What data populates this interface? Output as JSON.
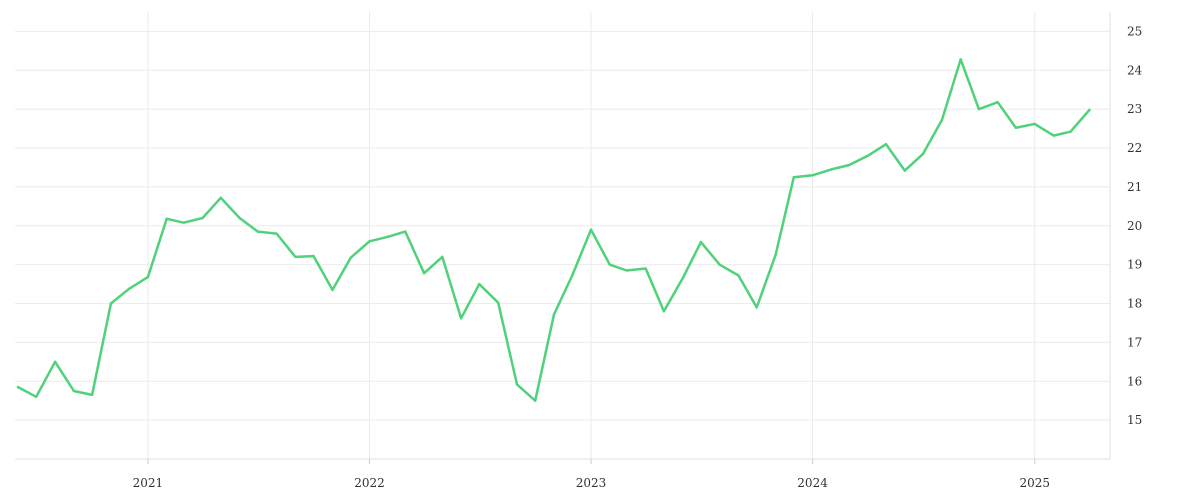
{
  "chart_data": {
    "type": "line",
    "title": "",
    "xlabel": "",
    "ylabel": "",
    "grid": true,
    "y_axis_side": "right",
    "ylim": [
      14,
      25.5
    ],
    "xlim": [
      "2020-05-27",
      "2025-05-05"
    ],
    "x_ticks": [
      {
        "date": "2021-01-01",
        "label": "2021"
      },
      {
        "date": "2022-01-01",
        "label": "2022"
      },
      {
        "date": "2023-01-01",
        "label": "2023"
      },
      {
        "date": "2024-01-01",
        "label": "2024"
      },
      {
        "date": "2025-01-01",
        "label": "2025"
      }
    ],
    "y_ticks": [
      15,
      16,
      17,
      18,
      19,
      20,
      21,
      22,
      23,
      24,
      25
    ],
    "series": [
      {
        "color": "#4fd27a",
        "points": [
          [
            "2020-06-01",
            15.85
          ],
          [
            "2020-07-01",
            15.6
          ],
          [
            "2020-08-01",
            16.5
          ],
          [
            "2020-09-01",
            15.75
          ],
          [
            "2020-10-01",
            15.65
          ],
          [
            "2020-11-01",
            18.0
          ],
          [
            "2020-12-01",
            18.38
          ],
          [
            "2021-01-01",
            18.68
          ],
          [
            "2021-02-01",
            20.18
          ],
          [
            "2021-03-01",
            20.08
          ],
          [
            "2021-04-01",
            20.2
          ],
          [
            "2021-05-01",
            20.72
          ],
          [
            "2021-06-01",
            20.2
          ],
          [
            "2021-07-01",
            19.85
          ],
          [
            "2021-08-01",
            19.8
          ],
          [
            "2021-09-01",
            19.2
          ],
          [
            "2021-10-01",
            19.22
          ],
          [
            "2021-11-01",
            18.35
          ],
          [
            "2021-12-01",
            19.18
          ],
          [
            "2022-01-01",
            19.6
          ],
          [
            "2022-02-01",
            19.72
          ],
          [
            "2022-03-01",
            19.85
          ],
          [
            "2022-04-01",
            18.78
          ],
          [
            "2022-05-01",
            19.2
          ],
          [
            "2022-06-01",
            17.62
          ],
          [
            "2022-07-01",
            18.5
          ],
          [
            "2022-08-01",
            18.02
          ],
          [
            "2022-09-01",
            15.92
          ],
          [
            "2022-10-01",
            15.5
          ],
          [
            "2022-11-01",
            17.72
          ],
          [
            "2022-12-01",
            18.72
          ],
          [
            "2023-01-01",
            19.9
          ],
          [
            "2023-02-01",
            19.0
          ],
          [
            "2023-03-01",
            18.85
          ],
          [
            "2023-04-01",
            18.9
          ],
          [
            "2023-05-01",
            17.8
          ],
          [
            "2023-06-01",
            18.65
          ],
          [
            "2023-07-01",
            19.58
          ],
          [
            "2023-08-01",
            19.0
          ],
          [
            "2023-09-01",
            18.72
          ],
          [
            "2023-10-01",
            17.9
          ],
          [
            "2023-11-01",
            19.25
          ],
          [
            "2023-12-01",
            21.25
          ],
          [
            "2024-01-01",
            21.3
          ],
          [
            "2024-02-01",
            21.45
          ],
          [
            "2024-03-01",
            21.56
          ],
          [
            "2024-04-01",
            21.8
          ],
          [
            "2024-05-01",
            22.1
          ],
          [
            "2024-06-01",
            21.42
          ],
          [
            "2024-07-01",
            21.85
          ],
          [
            "2024-08-01",
            22.72
          ],
          [
            "2024-09-01",
            24.28
          ],
          [
            "2024-10-01",
            23.0
          ],
          [
            "2024-11-01",
            23.18
          ],
          [
            "2024-12-01",
            22.52
          ],
          [
            "2025-01-01",
            22.62
          ],
          [
            "2025-02-01",
            22.32
          ],
          [
            "2025-03-01",
            22.42
          ],
          [
            "2025-04-01",
            22.98
          ]
        ]
      }
    ]
  }
}
